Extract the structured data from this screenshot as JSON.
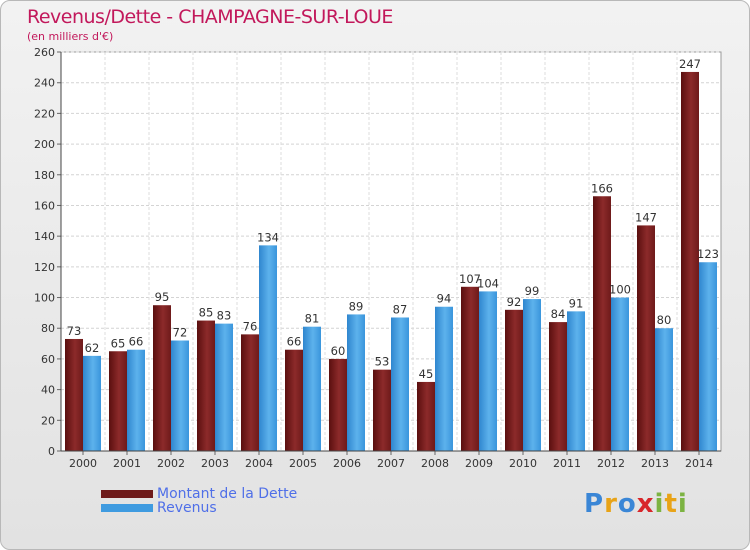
{
  "chart_data": {
    "type": "bar",
    "title": "Revenus/Dette - CHAMPAGNE-SUR-LOUE",
    "subtitle": "(en milliers d'€)",
    "categories": [
      "2000",
      "2001",
      "2002",
      "2003",
      "2004",
      "2005",
      "2006",
      "2007",
      "2008",
      "2009",
      "2010",
      "2011",
      "2012",
      "2013",
      "2014"
    ],
    "series": [
      {
        "name": "Montant de la Dette",
        "color": "#7a1f1f",
        "values": [
          73,
          65,
          95,
          85,
          76,
          66,
          60,
          53,
          45,
          107,
          92,
          84,
          166,
          147,
          247
        ]
      },
      {
        "name": "Revenus",
        "color": "#3f9be0",
        "values": [
          62,
          66,
          72,
          83,
          134,
          81,
          89,
          87,
          94,
          104,
          99,
          91,
          100,
          80,
          123
        ]
      }
    ],
    "ylim": [
      0,
      260
    ],
    "yticks": [
      0,
      20,
      40,
      60,
      80,
      100,
      120,
      140,
      160,
      180,
      200,
      220,
      240,
      260
    ],
    "grid": true,
    "legend": "bottom-left",
    "xlabel": "",
    "ylabel": ""
  },
  "legend": {
    "debt_label": "Montant de la Dette",
    "revenue_label": "Revenus"
  },
  "logo": {
    "text": "Proxiti",
    "letters": [
      "P",
      "r",
      "o",
      "x",
      "i",
      "t",
      "i"
    ]
  }
}
